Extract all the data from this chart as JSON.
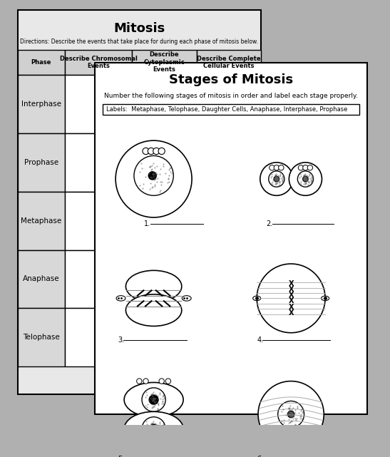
{
  "title1": "Mitosis",
  "directions1": "Directions: Describe the events that take place for during each phase of mitosis below.",
  "col_headers": [
    "Phase",
    "Describe Chromosomal\nEvents",
    "Describe\nCytoplasmic\nEvents",
    "Describe Complete\nCellular Events"
  ],
  "row_labels": [
    "Interphase",
    "Prophase",
    "Metaphase",
    "Anaphase",
    "Telophase"
  ],
  "title2": "Stages of Mitosis",
  "directions2": "Number the following stages of mitosis in order and label each stage properly.",
  "labels_text": "Labels:  Metaphase, Telophase, Daughter Cells, Anaphase, Interphase, Prophase",
  "page1_color": "#e8e8e8",
  "page2_color": "#ffffff",
  "border_color": "#000000",
  "bg_color": "#b0b0b0"
}
